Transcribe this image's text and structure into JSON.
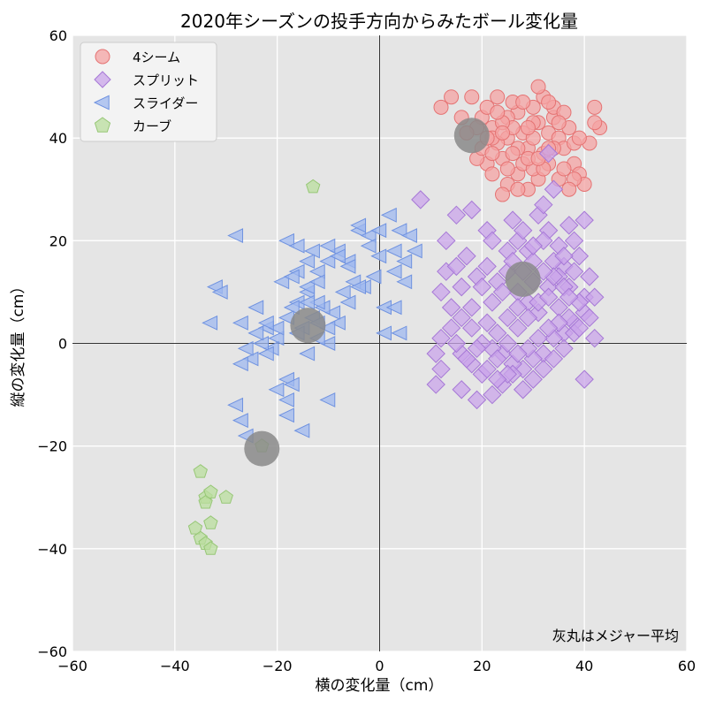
{
  "chart_data": {
    "type": "scatter",
    "title": "2020年シーズンの投手方向からみたボール変化量",
    "xlabel": "横の変化量（cm）",
    "ylabel": "縦の変化量（cm）",
    "xlim": [
      -60,
      60
    ],
    "ylim": [
      -60,
      60
    ],
    "xticks": [
      -60,
      -40,
      -20,
      0,
      20,
      40,
      60
    ],
    "yticks": [
      -60,
      -40,
      -20,
      0,
      20,
      40,
      60
    ],
    "xtick_labels": [
      "−60",
      "−40",
      "−20",
      "0",
      "20",
      "40",
      "60"
    ],
    "ytick_labels": [
      "−60",
      "−40",
      "−20",
      "0",
      "20",
      "40",
      "60"
    ],
    "grid": true,
    "background": "#e5e5e5",
    "legend_position": "top-left",
    "annotation": "灰丸はメジャー平均",
    "series": [
      {
        "name": "4シーム",
        "marker": "circle",
        "color": "#f4a3a3",
        "edge": "#e57373",
        "points": [
          [
            20,
            44
          ],
          [
            22,
            42
          ],
          [
            25,
            40
          ],
          [
            27,
            45
          ],
          [
            29,
            38
          ],
          [
            31,
            43
          ],
          [
            33,
            41
          ],
          [
            24,
            36
          ],
          [
            26,
            47
          ],
          [
            28,
            41
          ],
          [
            30,
            46
          ],
          [
            32,
            37
          ],
          [
            34,
            44
          ],
          [
            23,
            39
          ],
          [
            21,
            35
          ],
          [
            19,
            36
          ],
          [
            35,
            40
          ],
          [
            36,
            38
          ],
          [
            37,
            42
          ],
          [
            38,
            35
          ],
          [
            39,
            33
          ],
          [
            40,
            31
          ],
          [
            33,
            35
          ],
          [
            31,
            32
          ],
          [
            29,
            30
          ],
          [
            27,
            33
          ],
          [
            25,
            31
          ],
          [
            24,
            29
          ],
          [
            22,
            33
          ],
          [
            20,
            38
          ],
          [
            21,
            46
          ],
          [
            23,
            48
          ],
          [
            25,
            44
          ],
          [
            27,
            38
          ],
          [
            30,
            40
          ],
          [
            32,
            48
          ],
          [
            34,
            46
          ],
          [
            36,
            45
          ],
          [
            26,
            42
          ],
          [
            28,
            35
          ],
          [
            30,
            34
          ],
          [
            34,
            38
          ],
          [
            22,
            40
          ],
          [
            24,
            43
          ],
          [
            28,
            47
          ],
          [
            31,
            50
          ],
          [
            19,
            42
          ],
          [
            17,
            41
          ],
          [
            14,
            48
          ],
          [
            12,
            46
          ],
          [
            16,
            44
          ],
          [
            18,
            48
          ],
          [
            42,
            46
          ],
          [
            43,
            42
          ],
          [
            41,
            39
          ],
          [
            42,
            43
          ],
          [
            38,
            32
          ],
          [
            37,
            30
          ],
          [
            35,
            32
          ],
          [
            29,
            36
          ],
          [
            32,
            34
          ],
          [
            26,
            37
          ],
          [
            33,
            47
          ],
          [
            30,
            43
          ],
          [
            24,
            41
          ],
          [
            22,
            37
          ],
          [
            36,
            34
          ],
          [
            38,
            39
          ],
          [
            39,
            40
          ],
          [
            35,
            43
          ],
          [
            27,
            30
          ],
          [
            31,
            36
          ],
          [
            25,
            34
          ],
          [
            23,
            45
          ],
          [
            29,
            42
          ],
          [
            33,
            38
          ],
          [
            21,
            40
          ]
        ]
      },
      {
        "name": "スプリット",
        "marker": "diamond",
        "color": "#c9a4ea",
        "edge": "#a678d6",
        "points": [
          [
            8,
            28
          ],
          [
            13,
            20
          ],
          [
            15,
            25
          ],
          [
            18,
            26
          ],
          [
            21,
            22
          ],
          [
            22,
            20
          ],
          [
            25,
            18
          ],
          [
            27,
            20
          ],
          [
            29,
            18
          ],
          [
            31,
            25
          ],
          [
            32,
            27
          ],
          [
            34,
            30
          ],
          [
            33,
            22
          ],
          [
            35,
            19
          ],
          [
            37,
            23
          ],
          [
            40,
            24
          ],
          [
            38,
            20
          ],
          [
            36,
            15
          ],
          [
            39,
            17
          ],
          [
            41,
            13
          ],
          [
            40,
            9
          ],
          [
            42,
            9
          ],
          [
            40,
            6
          ],
          [
            38,
            4
          ],
          [
            36,
            2
          ],
          [
            34,
            1
          ],
          [
            32,
            -2
          ],
          [
            30,
            -3
          ],
          [
            28,
            -5
          ],
          [
            26,
            -4
          ],
          [
            24,
            -2
          ],
          [
            22,
            -1
          ],
          [
            20,
            0
          ],
          [
            18,
            3
          ],
          [
            16,
            5
          ],
          [
            14,
            7
          ],
          [
            12,
            10
          ],
          [
            13,
            14
          ],
          [
            15,
            15
          ],
          [
            17,
            17
          ],
          [
            19,
            13
          ],
          [
            21,
            15
          ],
          [
            23,
            12
          ],
          [
            25,
            14
          ],
          [
            27,
            10
          ],
          [
            29,
            8
          ],
          [
            31,
            6
          ],
          [
            33,
            11
          ],
          [
            35,
            13
          ],
          [
            37,
            11
          ],
          [
            39,
            8
          ],
          [
            41,
            5
          ],
          [
            38,
            2
          ],
          [
            36,
            -1
          ],
          [
            34,
            -3
          ],
          [
            32,
            -5
          ],
          [
            30,
            -7
          ],
          [
            28,
            -9
          ],
          [
            26,
            -6
          ],
          [
            24,
            -8
          ],
          [
            22,
            -10
          ],
          [
            20,
            -6
          ],
          [
            18,
            -4
          ],
          [
            16,
            -2
          ],
          [
            11,
            -2
          ],
          [
            12,
            -5
          ],
          [
            11,
            -8
          ],
          [
            16,
            -9
          ],
          [
            19,
            -11
          ],
          [
            21,
            -5
          ],
          [
            23,
            -3
          ],
          [
            25,
            0
          ],
          [
            27,
            3
          ],
          [
            29,
            5
          ],
          [
            31,
            8
          ],
          [
            33,
            9
          ],
          [
            35,
            7
          ],
          [
            37,
            5
          ],
          [
            39,
            3
          ],
          [
            36,
            11
          ],
          [
            34,
            16
          ],
          [
            32,
            20
          ],
          [
            30,
            16
          ],
          [
            28,
            14
          ],
          [
            26,
            16
          ],
          [
            24,
            10
          ],
          [
            22,
            8
          ],
          [
            20,
            11
          ],
          [
            18,
            7
          ],
          [
            16,
            11
          ],
          [
            14,
            3
          ],
          [
            12,
            1
          ],
          [
            40,
            -7
          ],
          [
            42,
            1
          ],
          [
            33,
            37
          ],
          [
            30,
            12
          ],
          [
            27,
            7
          ],
          [
            25,
            5
          ],
          [
            23,
            2
          ],
          [
            21,
            4
          ],
          [
            19,
            -1
          ],
          [
            17,
            -3
          ],
          [
            15,
            0
          ],
          [
            35,
            4
          ],
          [
            37,
            9
          ],
          [
            33,
            3
          ],
          [
            31,
            1
          ],
          [
            29,
            -1
          ],
          [
            27,
            -2
          ],
          [
            25,
            -6
          ],
          [
            23,
            -7
          ],
          [
            38,
            14
          ],
          [
            36,
            17
          ],
          [
            34,
            13
          ],
          [
            32,
            14
          ],
          [
            30,
            19
          ],
          [
            28,
            22
          ],
          [
            26,
            24
          ]
        ]
      },
      {
        "name": "スライダー",
        "marker": "triangle-left",
        "color": "#9fb8ef",
        "edge": "#6f92e0",
        "points": [
          [
            -28,
            21
          ],
          [
            -32,
            11
          ],
          [
            -31,
            10
          ],
          [
            -33,
            4
          ],
          [
            -27,
            4
          ],
          [
            -24,
            7
          ],
          [
            -22,
            3
          ],
          [
            -20,
            1
          ],
          [
            -18,
            5
          ],
          [
            -16,
            8
          ],
          [
            -14,
            10
          ],
          [
            -12,
            14
          ],
          [
            -10,
            16
          ],
          [
            -8,
            18
          ],
          [
            -6,
            16
          ],
          [
            -4,
            22
          ],
          [
            -2,
            21
          ],
          [
            0,
            17
          ],
          [
            2,
            25
          ],
          [
            4,
            22
          ],
          [
            6,
            21
          ],
          [
            7,
            18
          ],
          [
            5,
            12
          ],
          [
            3,
            14
          ],
          [
            1,
            7
          ],
          [
            -1,
            13
          ],
          [
            -3,
            11
          ],
          [
            -5,
            12
          ],
          [
            -7,
            10
          ],
          [
            -9,
            6
          ],
          [
            -11,
            7
          ],
          [
            -13,
            5
          ],
          [
            -15,
            3
          ],
          [
            -17,
            7
          ],
          [
            -19,
            12
          ],
          [
            -21,
            -1
          ],
          [
            -23,
            0
          ],
          [
            -25,
            -3
          ],
          [
            -27,
            -4
          ],
          [
            -28,
            -12
          ],
          [
            -27,
            -15
          ],
          [
            -26,
            -18
          ],
          [
            -18,
            -7
          ],
          [
            -17,
            -8
          ],
          [
            -18,
            -14
          ],
          [
            -15,
            -17
          ],
          [
            -10,
            -11
          ],
          [
            -10,
            0
          ],
          [
            -12,
            1
          ],
          [
            -14,
            -2
          ],
          [
            -16,
            2
          ],
          [
            -20,
            3
          ],
          [
            -22,
            -2
          ],
          [
            -26,
            -1
          ],
          [
            -8,
            4
          ],
          [
            -6,
            8
          ],
          [
            -4,
            11
          ],
          [
            -10,
            3
          ],
          [
            -12,
            8
          ],
          [
            -14,
            11
          ],
          [
            -16,
            14
          ],
          [
            -18,
            20
          ],
          [
            -16,
            19
          ],
          [
            -14,
            16
          ],
          [
            -12,
            12
          ],
          [
            -10,
            19
          ],
          [
            -8,
            17
          ],
          [
            -6,
            15
          ],
          [
            -4,
            23
          ],
          [
            -2,
            19
          ],
          [
            0,
            22
          ],
          [
            3,
            18
          ],
          [
            5,
            16
          ],
          [
            -12,
            4
          ],
          [
            -14,
            8
          ],
          [
            3,
            7
          ],
          [
            1,
            2
          ],
          [
            -20,
            -9
          ],
          [
            -18,
            -11
          ],
          [
            4,
            2
          ],
          [
            -22,
            4
          ],
          [
            -24,
            2
          ],
          [
            -13,
            18
          ],
          [
            -17,
            13
          ]
        ]
      },
      {
        "name": "カーブ",
        "marker": "pentagon",
        "color": "#b9dd9e",
        "edge": "#97c776",
        "points": [
          [
            -13,
            30.5
          ],
          [
            -35,
            -25
          ],
          [
            -34,
            -30
          ],
          [
            -33,
            -29
          ],
          [
            -34,
            -31
          ],
          [
            -30,
            -30
          ],
          [
            -36,
            -36
          ],
          [
            -35,
            -38
          ],
          [
            -33,
            -35
          ],
          [
            -34,
            -39
          ],
          [
            -33,
            -40
          ],
          [
            -23,
            -20
          ]
        ]
      }
    ],
    "averages": {
      "name": "メジャー平均",
      "color": "#8a8a8a",
      "points": [
        [
          18,
          40.5
        ],
        [
          28,
          12.5
        ],
        [
          -14,
          3.5
        ],
        [
          -23,
          -20.5
        ]
      ]
    }
  }
}
